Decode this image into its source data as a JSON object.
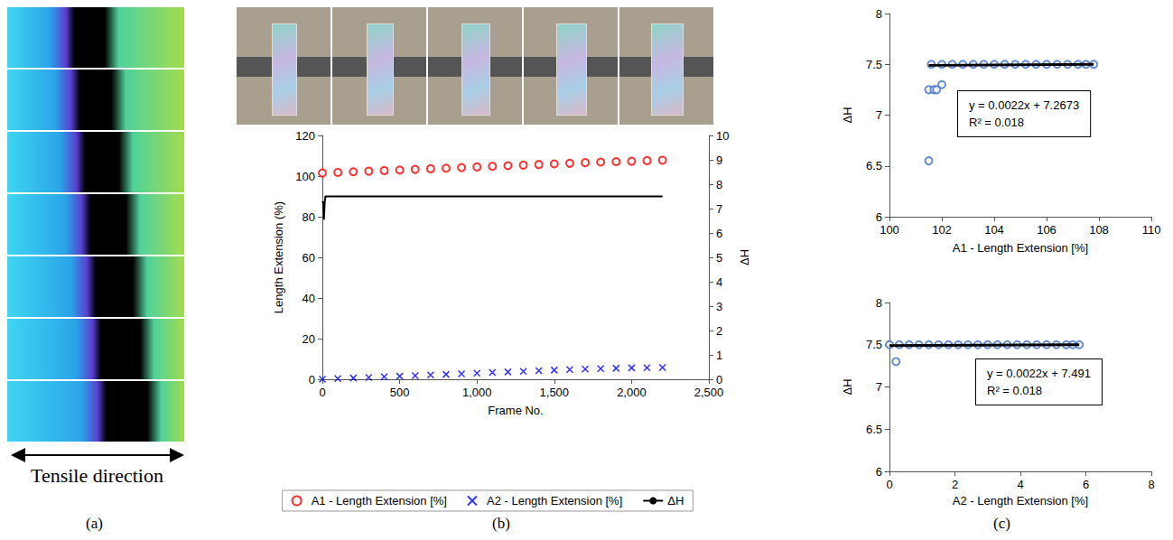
{
  "figure": {
    "panels": [
      "(a)",
      "(b)",
      "(c)"
    ],
    "caption": "Tensile direction"
  },
  "chart_data": [
    {
      "type": "scatter",
      "x_label": "Frame No.",
      "y_label": "Length Extension (%)",
      "y2_label": "ΔH",
      "xlim": [
        0,
        2500
      ],
      "xticks": [
        0,
        500,
        1000,
        1500,
        2000,
        2500
      ],
      "ylim": [
        0,
        120
      ],
      "yticks": [
        0,
        20,
        40,
        60,
        80,
        100,
        120
      ],
      "y2lim": [
        0,
        10
      ],
      "y2ticks": [
        0,
        1,
        2,
        3,
        4,
        5,
        6,
        7,
        8,
        9,
        10
      ],
      "grid": false,
      "legend": "bottom",
      "series": [
        {
          "name": "A1 - Length Extension [%]",
          "color": "#ff0000",
          "marker": "circle",
          "x": [
            0,
            100,
            200,
            300,
            400,
            500,
            600,
            700,
            800,
            900,
            1000,
            1100,
            1200,
            1300,
            1400,
            1500,
            1600,
            1700,
            1800,
            1900,
            2000,
            2100,
            2200
          ],
          "values": [
            101.5,
            101.8,
            102.1,
            102.4,
            102.7,
            103.0,
            103.3,
            103.6,
            103.9,
            104.2,
            104.5,
            104.8,
            105.1,
            105.4,
            105.7,
            106.0,
            106.3,
            106.6,
            106.9,
            107.1,
            107.3,
            107.6,
            107.8
          ]
        },
        {
          "name": "A2 - Length Extension [%]",
          "color": "#0000ff",
          "marker": "x",
          "x": [
            0,
            100,
            200,
            300,
            400,
            500,
            600,
            700,
            800,
            900,
            1000,
            1100,
            1200,
            1300,
            1400,
            1500,
            1600,
            1700,
            1800,
            1900,
            2000,
            2100,
            2200
          ],
          "values": [
            0,
            0.3,
            0.6,
            0.9,
            1.2,
            1.5,
            1.8,
            2.1,
            2.4,
            2.7,
            3.0,
            3.3,
            3.6,
            3.9,
            4.2,
            4.5,
            4.8,
            5.0,
            5.2,
            5.4,
            5.6,
            5.7,
            5.8
          ]
        },
        {
          "name": "ΔH",
          "color": "#000000",
          "type": "line",
          "axis": "y2",
          "line_style": "solid",
          "x": [
            0,
            5,
            10,
            15,
            20,
            30,
            100,
            500,
            1000,
            1500,
            2000,
            2200
          ],
          "values": [
            7.3,
            7.25,
            6.55,
            7.25,
            7.5,
            7.5,
            7.5,
            7.5,
            7.5,
            7.5,
            7.5,
            7.5
          ]
        }
      ]
    },
    {
      "type": "scatter",
      "x_label": "A1 - Length Extension [%]",
      "y_label": "ΔH",
      "xlim": [
        100,
        110
      ],
      "xticks": [
        100,
        102,
        104,
        106,
        108,
        110
      ],
      "ylim": [
        6,
        8
      ],
      "yticks": [
        6,
        6.5,
        7,
        7.5,
        8
      ],
      "grid": false,
      "annotations": [
        "y = 0.0022x + 7.2673",
        "R² = 0.018"
      ],
      "series": [
        {
          "color": "#4472c4",
          "marker": "circle",
          "x": [
            101.5,
            101.7,
            101.8,
            102.0,
            101.5,
            101.6,
            102.0,
            102.4,
            102.8,
            103.2,
            103.6,
            104.0,
            104.4,
            104.8,
            105.2,
            105.6,
            106.0,
            106.4,
            106.8,
            107.2,
            107.5,
            107.8
          ],
          "values": [
            7.25,
            7.25,
            7.25,
            7.3,
            6.55,
            7.5,
            7.5,
            7.5,
            7.5,
            7.5,
            7.5,
            7.5,
            7.5,
            7.5,
            7.5,
            7.5,
            7.5,
            7.5,
            7.5,
            7.5,
            7.5,
            7.5
          ]
        },
        {
          "color": "#000000",
          "type": "line",
          "line_style": "solid",
          "x": [
            101.5,
            107.8
          ],
          "values": [
            7.49,
            7.5
          ]
        }
      ]
    },
    {
      "type": "scatter",
      "x_label": "A2 - Length Extension [%]",
      "y_label": "ΔH",
      "xlim": [
        0,
        8
      ],
      "xticks": [
        0,
        2,
        4,
        6,
        8
      ],
      "ylim": [
        6,
        8
      ],
      "yticks": [
        6,
        6.5,
        7,
        7.5,
        8
      ],
      "grid": false,
      "annotations": [
        "y = 0.0022x + 7.491",
        "R² = 0.018"
      ],
      "series": [
        {
          "color": "#4472c4",
          "marker": "circle",
          "x": [
            0.2,
            0,
            0.3,
            0.6,
            0.9,
            1.2,
            1.5,
            1.8,
            2.1,
            2.4,
            2.7,
            3.0,
            3.3,
            3.6,
            3.9,
            4.2,
            4.5,
            4.8,
            5.1,
            5.4,
            5.6,
            5.8
          ],
          "values": [
            7.3,
            7.5,
            7.5,
            7.5,
            7.5,
            7.5,
            7.5,
            7.5,
            7.5,
            7.5,
            7.5,
            7.5,
            7.5,
            7.5,
            7.5,
            7.5,
            7.5,
            7.5,
            7.5,
            7.5,
            7.5,
            7.5
          ]
        },
        {
          "color": "#000000",
          "type": "line",
          "line_style": "solid",
          "x": [
            0,
            5.8
          ],
          "values": [
            7.49,
            7.5
          ]
        }
      ]
    }
  ]
}
